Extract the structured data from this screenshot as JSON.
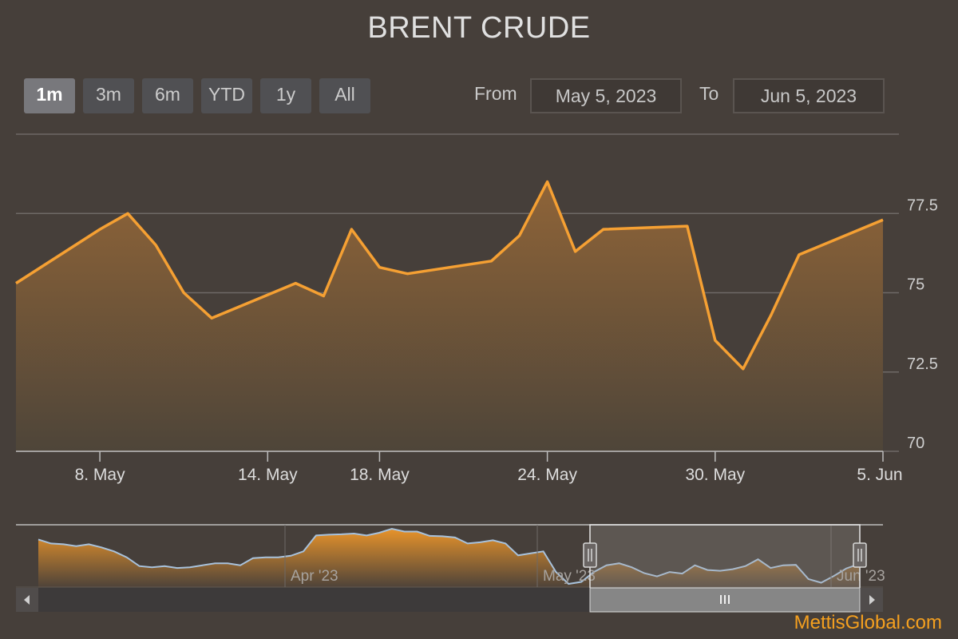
{
  "title": "BRENT CRUDE",
  "range_selector": {
    "buttons": [
      "1m",
      "3m",
      "6m",
      "YTD",
      "1y",
      "All"
    ],
    "active": "1m",
    "from_label": "From",
    "from_value": "May 5, 2023",
    "to_label": "To",
    "to_value": "Jun 5, 2023"
  },
  "brand": "MettisGlobal.com",
  "colors": {
    "line": "#f5a033",
    "area_top": "#8f6438",
    "area_bottom": "#4e4539",
    "navigator_line": "#a8c2dc",
    "navigator_fill": "#f0982a",
    "grid": "#6e6966",
    "background": "#463f3a"
  },
  "chart_data": {
    "type": "area",
    "title": "BRENT CRUDE",
    "x": [
      "2023-05-05",
      "2023-05-08",
      "2023-05-09",
      "2023-05-10",
      "2023-05-11",
      "2023-05-12",
      "2023-05-15",
      "2023-05-16",
      "2023-05-17",
      "2023-05-18",
      "2023-05-19",
      "2023-05-22",
      "2023-05-23",
      "2023-05-24",
      "2023-05-25",
      "2023-05-26",
      "2023-05-29",
      "2023-05-30",
      "2023-05-31",
      "2023-06-01",
      "2023-06-02",
      "2023-06-05"
    ],
    "values": [
      75.3,
      77.0,
      77.5,
      76.5,
      75.0,
      74.2,
      75.3,
      74.9,
      77.0,
      75.8,
      75.6,
      76.0,
      76.8,
      78.5,
      76.3,
      77.0,
      77.1,
      73.5,
      72.6,
      74.3,
      76.2,
      77.3
    ],
    "x_tick_labels": [
      "8. May",
      "14. May",
      "18. May",
      "24. May",
      "30. May",
      "5. Jun"
    ],
    "y_ticks": [
      70,
      72.5,
      75,
      77.5
    ],
    "y_tick_labels": [
      "70",
      "72.5",
      "75",
      "77.5"
    ],
    "ylim": [
      70,
      80
    ],
    "grid": true,
    "legend": "none",
    "navigator": {
      "labels": [
        "Apr '23",
        "May '23",
        "Jun '23"
      ],
      "selected_range": [
        "2023-05-05",
        "2023-06-05"
      ],
      "values": [
        83.5,
        82.5,
        82.3,
        81.8,
        82.3,
        81.5,
        80.5,
        79.0,
        76.8,
        76.5,
        76.8,
        76.3,
        76.5,
        77.0,
        77.5,
        77.5,
        77.0,
        78.8,
        79.0,
        79.0,
        79.4,
        80.5,
        84.5,
        84.7,
        84.8,
        85.0,
        84.5,
        85.2,
        86.2,
        85.5,
        85.5,
        84.4,
        84.3,
        84.0,
        82.5,
        82.8,
        83.3,
        82.5,
        79.5,
        80.0,
        80.5,
        75.3,
        72.3,
        72.8,
        75.3,
        77.0,
        77.5,
        76.5,
        75.0,
        74.2,
        75.3,
        74.9,
        77.0,
        75.8,
        75.6,
        76.0,
        76.8,
        78.5,
        76.3,
        77.0,
        77.1,
        73.5,
        72.6,
        74.3,
        76.2,
        77.3
      ]
    }
  }
}
